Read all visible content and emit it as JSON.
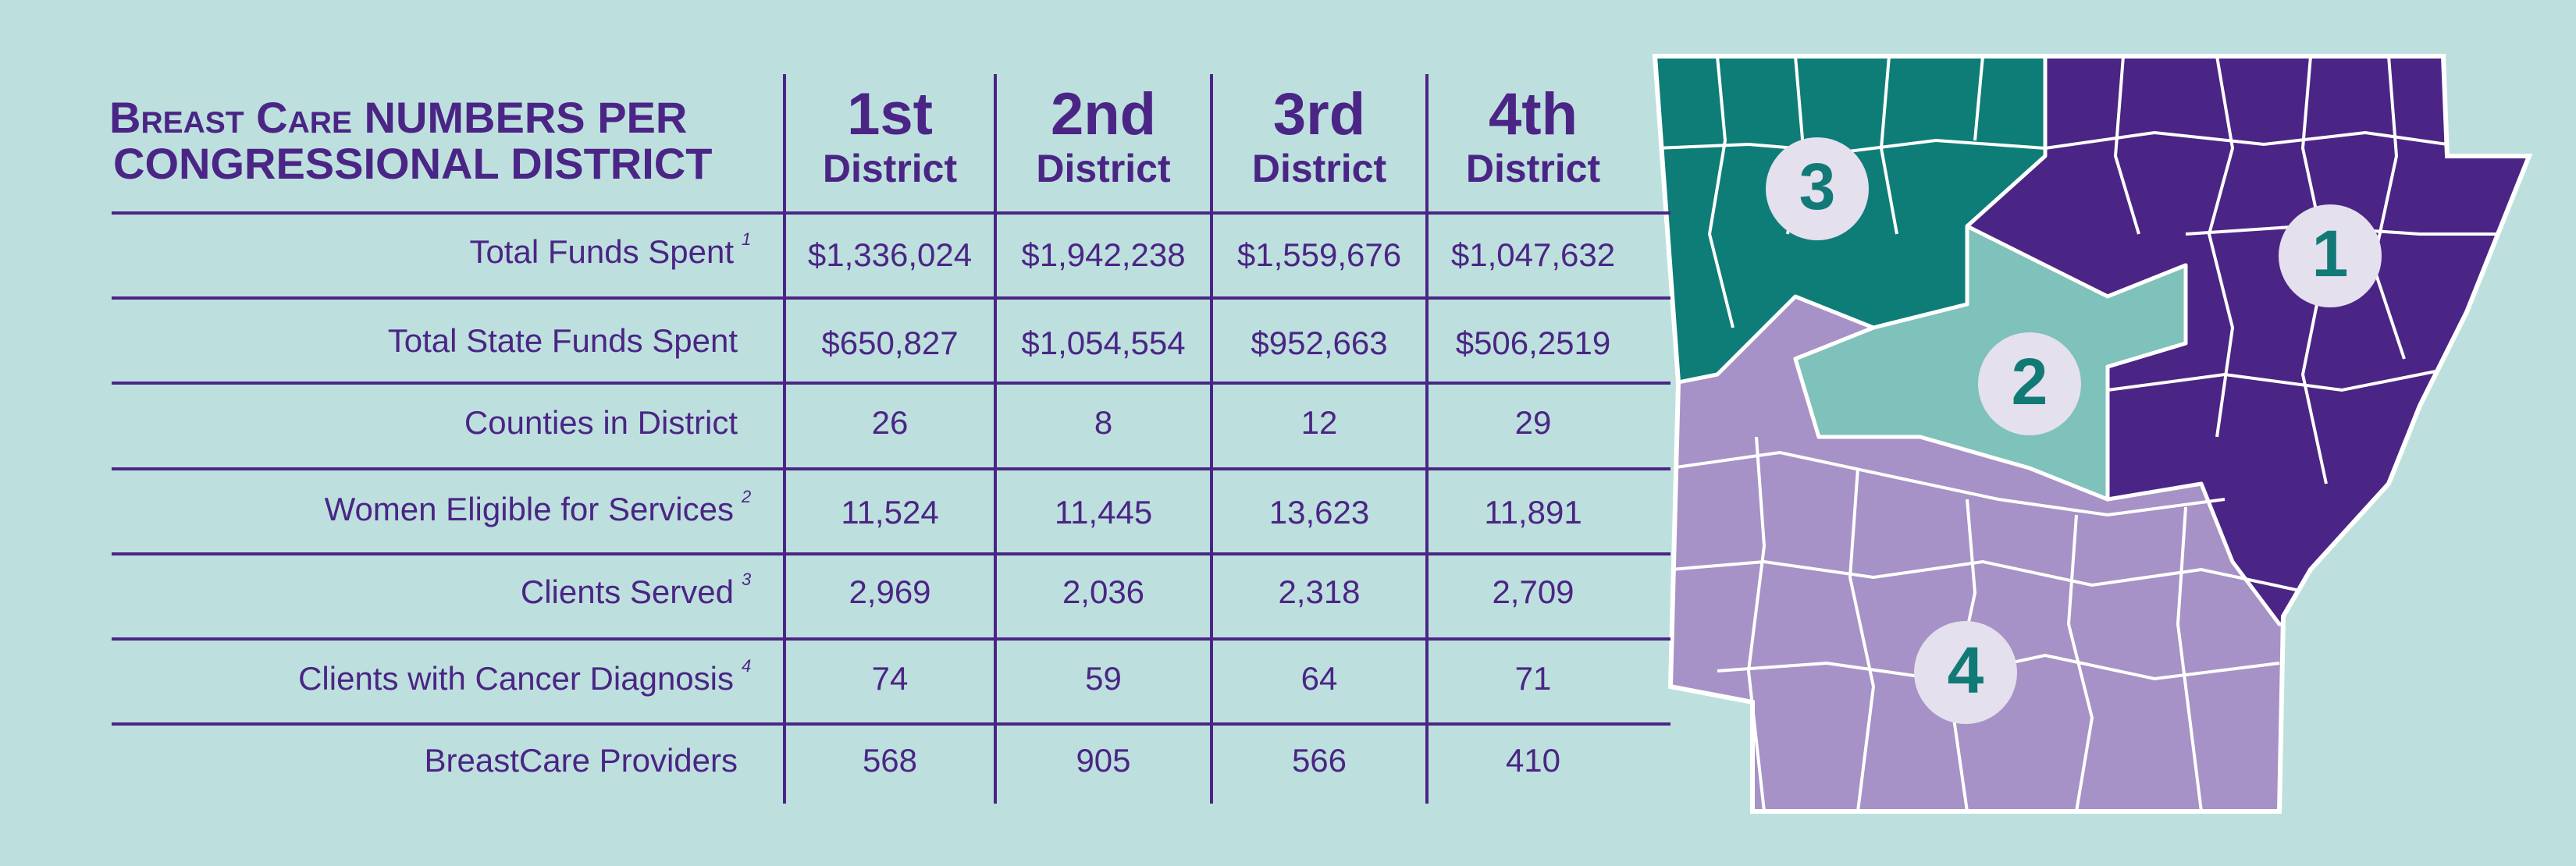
{
  "header": {
    "title_line1": "Breast Care NUMBERS PER",
    "title_line2": "CONGRESSIONAL DISTRICT"
  },
  "columns": [
    {
      "ordinal": "1st",
      "label": "District"
    },
    {
      "ordinal": "2nd",
      "label": "District"
    },
    {
      "ordinal": "3rd",
      "label": "District"
    },
    {
      "ordinal": "4th",
      "label": "District"
    }
  ],
  "rows": [
    {
      "label": "Total Funds Spent",
      "note": "1",
      "values": [
        "$1,336,024",
        "$1,942,238",
        "$1,559,676",
        "$1,047,632"
      ]
    },
    {
      "label": "Total State Funds Spent",
      "values": [
        "$650,827",
        "$1,054,554",
        "$952,663",
        "$506,2519"
      ]
    },
    {
      "label": "Counties in District",
      "values": [
        "26",
        "8",
        "12",
        "29"
      ]
    },
    {
      "label": "Women Eligible for Services",
      "note": "2",
      "values": [
        "11,524",
        "11,445",
        "13,623",
        "11,891"
      ]
    },
    {
      "label": "Clients Served",
      "note": "3",
      "values": [
        "2,969",
        "2,036",
        "2,318",
        "2,709"
      ]
    },
    {
      "label": "Clients with Cancer Diagnosis",
      "note": "4",
      "values": [
        "74",
        "59",
        "64",
        "71"
      ]
    },
    {
      "label": "BreastCare Providers",
      "values": [
        "568",
        "905",
        "566",
        "410"
      ]
    }
  ],
  "map": {
    "labels": [
      "3",
      "2",
      "1",
      "4"
    ]
  }
}
